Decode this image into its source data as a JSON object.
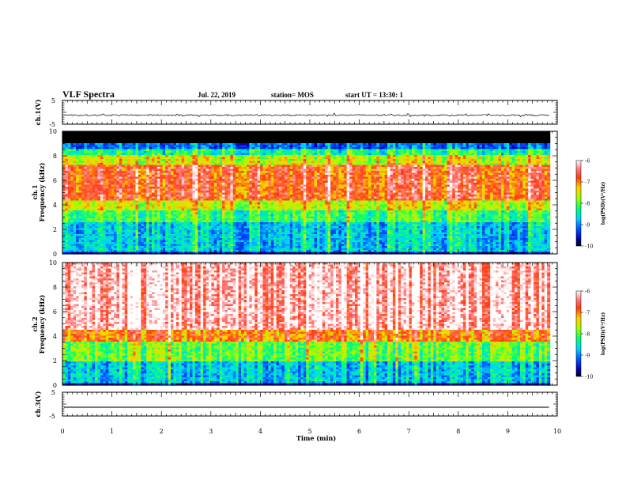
{
  "header": {
    "title": "VLF Spectra",
    "date": "Jul. 22, 2019",
    "station": "station= MOS",
    "start": "start UT = 13:30: 1"
  },
  "chart_data": [
    {
      "type": "line",
      "panel": "ch1-waveform",
      "ylabel": "ch.1(V)",
      "ylim": [
        -5,
        5
      ],
      "yticks": [
        "5",
        "-5"
      ],
      "xlim": [
        0,
        10
      ],
      "series": [
        {
          "description": "noisy waveform near constant level",
          "level": -1.2
        }
      ]
    },
    {
      "type": "heatmap",
      "panel": "ch1-spectrogram",
      "ylabel_top": "ch.1",
      "ylabel": "Frequency (kHz)",
      "ylim": [
        0,
        10
      ],
      "yticks": [
        "0",
        "2",
        "4",
        "6",
        "8",
        "10"
      ],
      "xlim": [
        0,
        10
      ],
      "data_extent_min": 9.85,
      "bands_khz": [
        {
          "from": 0.0,
          "to": 0.2,
          "level": -10
        },
        {
          "from": 0.2,
          "to": 2.5,
          "level": -8.8
        },
        {
          "from": 2.5,
          "to": 3.5,
          "level": -8.2
        },
        {
          "from": 3.5,
          "to": 4.3,
          "level": -7.6
        },
        {
          "from": 4.3,
          "to": 7.3,
          "level": -6.8
        },
        {
          "from": 7.3,
          "to": 8.0,
          "level": -7.6
        },
        {
          "from": 8.0,
          "to": 8.6,
          "level": -8.4
        },
        {
          "from": 8.6,
          "to": 9.0,
          "level": -9.3
        },
        {
          "from": 9.0,
          "to": 10.0,
          "level": -11
        }
      ],
      "colorbar": {
        "label": "log(PSD)(V²/Hz)",
        "range": [
          -10,
          -6
        ],
        "ticks": [
          "-6",
          "-7",
          "-8",
          "-9",
          "-10"
        ]
      }
    },
    {
      "type": "heatmap",
      "panel": "ch2-spectrogram",
      "ylabel_top": "ch.2",
      "ylabel": "Frequency (kHz)",
      "ylim": [
        0,
        10
      ],
      "yticks": [
        "0",
        "2",
        "4",
        "6",
        "8",
        "10"
      ],
      "xlim": [
        0,
        10
      ],
      "data_extent_min": 9.85,
      "bands_khz": [
        {
          "from": 0.0,
          "to": 0.2,
          "level": -10
        },
        {
          "from": 0.2,
          "to": 2.0,
          "level": -8.8
        },
        {
          "from": 2.0,
          "to": 3.5,
          "level": -8.0
        },
        {
          "from": 3.5,
          "to": 4.5,
          "level": -7.0
        },
        {
          "from": 4.5,
          "to": 10.0,
          "level": -6.2
        }
      ],
      "colorbar": {
        "label": "log(PSD)(V²/Hz)",
        "range": [
          -10,
          -6
        ],
        "ticks": [
          "-6",
          "-7",
          "-8",
          "-9",
          "-10"
        ]
      }
    },
    {
      "type": "line",
      "panel": "ch3-waveform",
      "ylabel": "ch.3(V)",
      "ylim": [
        -5,
        5
      ],
      "yticks": [
        "5",
        "-5"
      ],
      "xlim": [
        0,
        10
      ],
      "xlabel": "Time (min)",
      "xticks": [
        "0",
        "1",
        "2",
        "3",
        "4",
        "5",
        "6",
        "7",
        "8",
        "9",
        "10"
      ],
      "series": [
        {
          "description": "flat line",
          "level": -1.3
        }
      ]
    }
  ]
}
